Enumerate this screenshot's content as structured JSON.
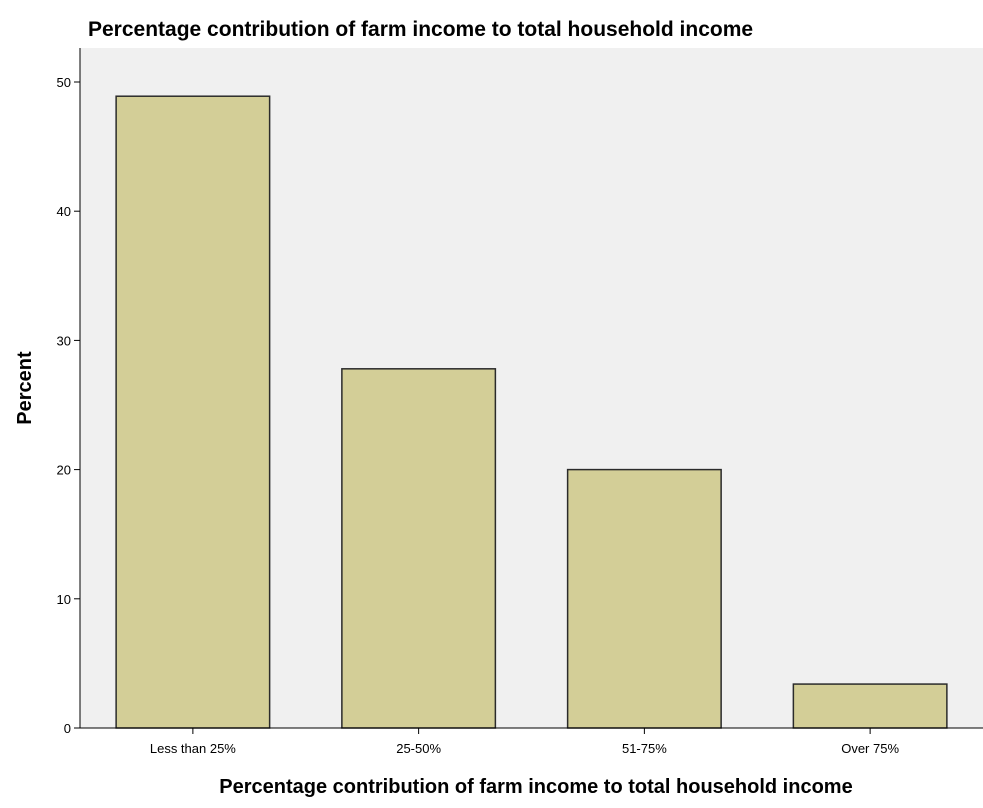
{
  "chart_data": {
    "type": "bar",
    "title": "Percentage contribution of farm income to total household income",
    "xlabel": "Percentage contribution of farm income to total household income",
    "ylabel": "Percent",
    "categories": [
      "Less than 25%",
      "25-50%",
      "51-75%",
      "Over 75%"
    ],
    "values": [
      48.9,
      27.8,
      20.0,
      3.4
    ],
    "ylim": [
      0,
      50
    ],
    "yticks": [
      "0",
      "10",
      "20",
      "30",
      "40",
      "50"
    ],
    "grid": false,
    "legend": "none",
    "colors": {
      "bar_fill": "#d3ce97",
      "bar_stroke": "#2b2b2b",
      "plot_background": "#f0f0f0"
    }
  }
}
